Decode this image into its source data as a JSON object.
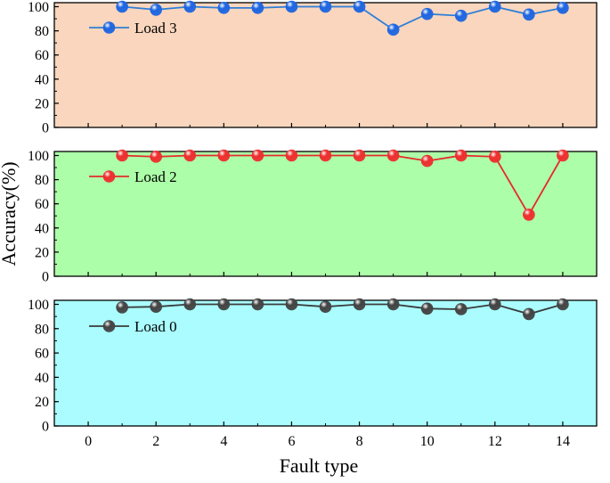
{
  "chart_data": [
    {
      "type": "line",
      "series": [
        {
          "name": "Load 3",
          "x": [
            1,
            2,
            3,
            4,
            5,
            6,
            7,
            8,
            9,
            10,
            11,
            12,
            13,
            14
          ],
          "values": [
            100,
            97.5,
            100,
            99,
            99,
            100,
            100,
            100,
            81,
            94,
            92.5,
            100,
            93.5,
            99
          ]
        }
      ],
      "colors": {
        "background": "#f9d6bd",
        "line": "#2f7ed8",
        "marker": "#1f66e0"
      },
      "xlim": [
        -1,
        15
      ],
      "ylim": [
        0,
        100
      ],
      "yticks": [
        "0",
        "20",
        "40",
        "60",
        "80",
        "100"
      ]
    },
    {
      "type": "line",
      "series": [
        {
          "name": "Load 2",
          "x": [
            1,
            2,
            3,
            4,
            5,
            6,
            7,
            8,
            9,
            10,
            11,
            12,
            13,
            14
          ],
          "values": [
            100,
            99,
            100,
            100,
            100,
            100,
            100,
            100,
            100,
            95.5,
            100,
            99,
            51,
            100
          ]
        }
      ],
      "colors": {
        "background": "#adfea8",
        "line": "#e52b2b",
        "marker": "#ee2f2f"
      },
      "xlim": [
        -1,
        15
      ],
      "ylim": [
        0,
        100
      ],
      "yticks": [
        "0",
        "20",
        "40",
        "60",
        "80",
        "100"
      ]
    },
    {
      "type": "line",
      "series": [
        {
          "name": "Load 0",
          "x": [
            1,
            2,
            3,
            4,
            5,
            6,
            7,
            8,
            9,
            10,
            11,
            12,
            13,
            14
          ],
          "values": [
            97.5,
            98,
            100,
            100,
            100,
            100,
            98,
            100,
            100,
            96.5,
            96,
            100,
            92,
            100
          ]
        }
      ],
      "colors": {
        "background": "#aafcfe",
        "line": "#3a3a3a",
        "marker": "#444444"
      },
      "xlim": [
        -1,
        15
      ],
      "ylim": [
        0,
        100
      ],
      "yticks": [
        "0",
        "20",
        "40",
        "60",
        "80",
        "100"
      ],
      "xticks": [
        "0",
        "2",
        "4",
        "6",
        "8",
        "10",
        "12",
        "14"
      ]
    }
  ],
  "ylabel": "Accuracy(%)",
  "xlabel": "Fault type"
}
